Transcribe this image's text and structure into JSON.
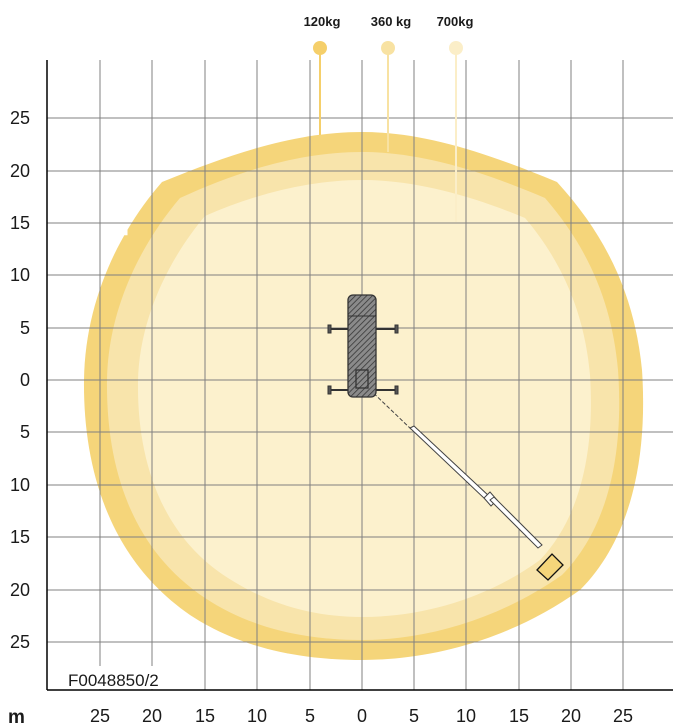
{
  "legend": [
    {
      "label": "120kg",
      "color": "#f5cf6a"
    },
    {
      "label": "360 kg",
      "color": "#f8e2a2"
    },
    {
      "label": "700kg",
      "color": "#fbeec8"
    }
  ],
  "y_ticks": [
    "25",
    "20",
    "15",
    "10",
    "5",
    "0",
    "5",
    "10",
    "15",
    "20",
    "25"
  ],
  "x_ticks": [
    "25",
    "20",
    "15",
    "10",
    "5",
    "0",
    "5",
    "10",
    "15",
    "20",
    "25"
  ],
  "unit_label": "m",
  "drawing_code": "F0048850/2",
  "colors": {
    "grid": "#7f7f7f",
    "axis": "#000000",
    "zone_120kg": "#f5d57a",
    "zone_360kg": "#f8e4ab",
    "zone_700kg": "#fcf1cd",
    "vehicle": "#555555"
  }
}
